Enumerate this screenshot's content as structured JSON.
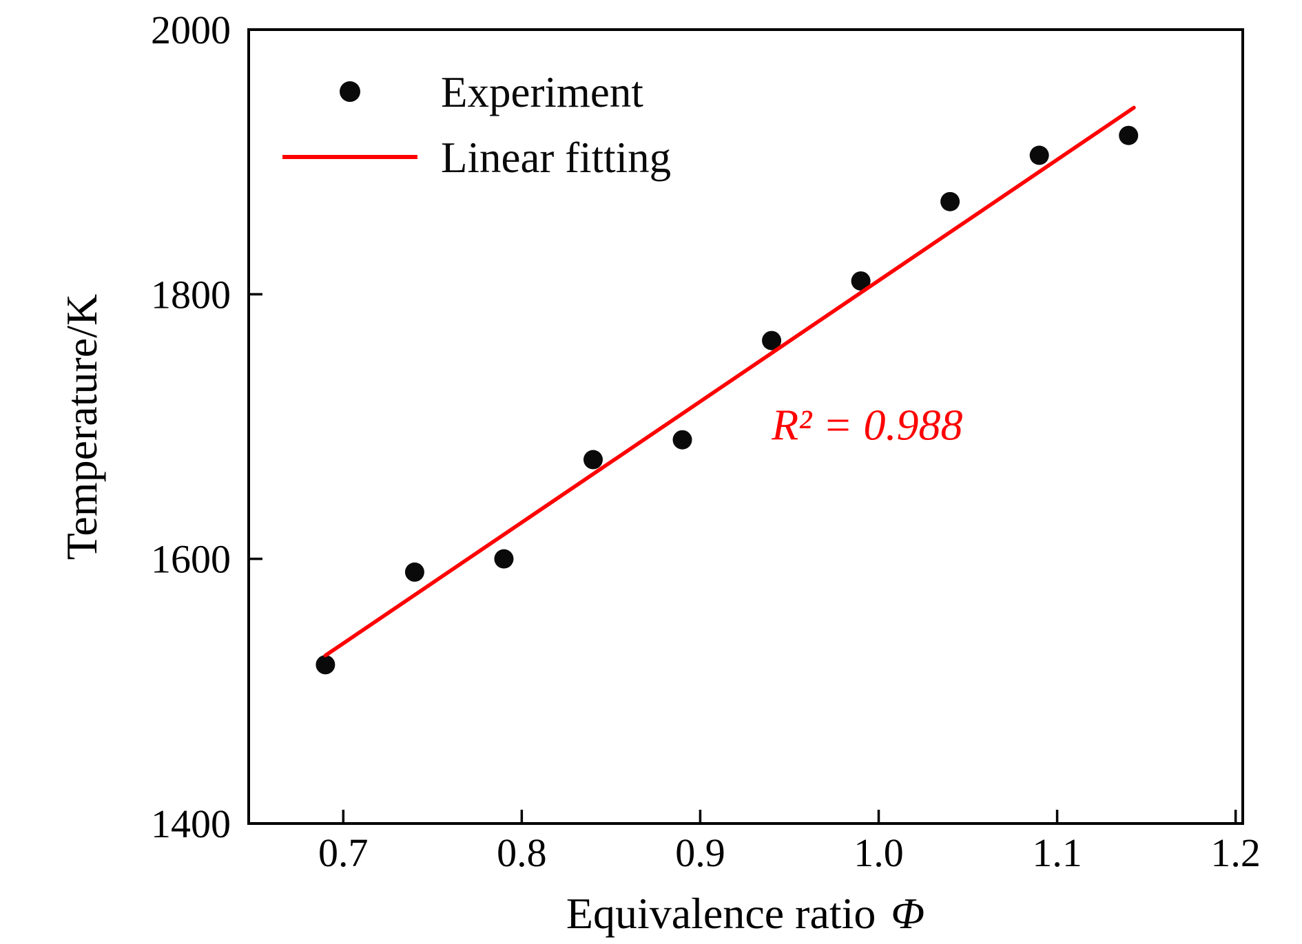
{
  "chart_data": {
    "type": "scatter",
    "title": "",
    "xlabel": "Equivalence ratio Φ",
    "xlabel_text": "Equivalence ratio ",
    "xlabel_symbol": "Φ",
    "ylabel": "Temperature/K",
    "xlim": [
      0.647,
      1.204
    ],
    "ylim": [
      1400,
      2000
    ],
    "x_ticks": {
      "values": [
        0.7,
        0.8,
        0.9,
        1.0,
        1.1,
        1.2
      ],
      "labels": [
        "0.7",
        "0.8",
        "0.9",
        "1.0",
        "1.1",
        "1.2"
      ]
    },
    "y_ticks": {
      "values": [
        1400,
        1600,
        1800,
        2000
      ],
      "labels": [
        "1400",
        "1600",
        "1800",
        "2000"
      ]
    },
    "grid": false,
    "legend_position": "top-left",
    "series": [
      {
        "name": "Experiment",
        "kind": "scatter",
        "marker": "circle",
        "color": "#0a0a0a",
        "x": [
          0.69,
          0.74,
          0.79,
          0.84,
          0.89,
          0.94,
          0.99,
          1.04,
          1.09,
          1.14
        ],
        "y": [
          1520,
          1590,
          1600,
          1675,
          1690,
          1765,
          1810,
          1870,
          1905,
          1920
        ]
      },
      {
        "name": "Linear fitting",
        "kind": "line",
        "color": "#ff0000",
        "x": [
          0.69,
          1.143
        ],
        "y": [
          1527,
          1941
        ]
      }
    ],
    "annotation": {
      "text": "R² = 0.988",
      "x": 0.94,
      "y": 1690,
      "color": "#ff0000"
    },
    "colors": {
      "axis": "#000000",
      "experiment": "#0a0a0a",
      "fit_line": "#ff0000",
      "background": "#ffffff"
    }
  }
}
